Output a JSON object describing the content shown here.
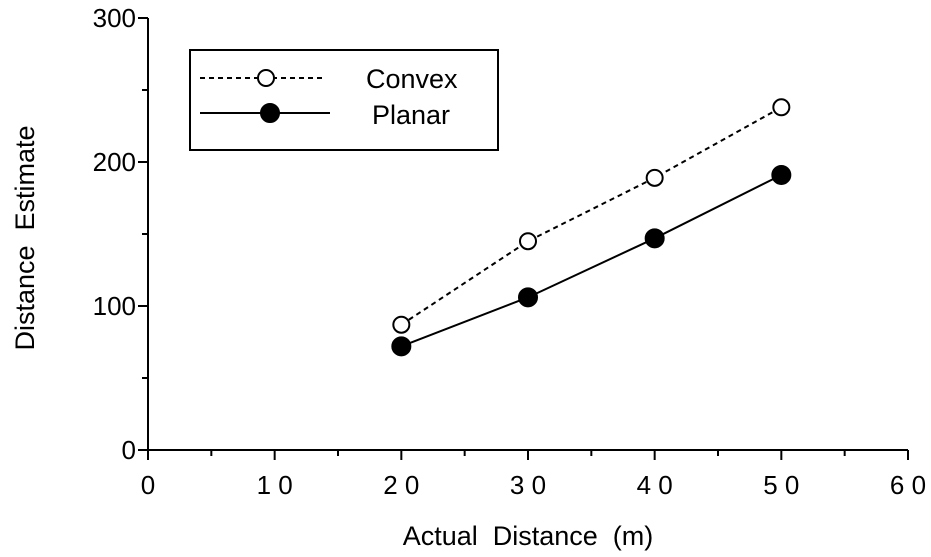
{
  "chart_data": {
    "type": "line",
    "xlabel": "Actual  Distance  (m)",
    "ylabel": "Distance  Estimate",
    "xlim": [
      0,
      60
    ],
    "ylim": [
      0,
      300
    ],
    "x_ticks": [
      0,
      10,
      20,
      30,
      40,
      50,
      60
    ],
    "x_tick_labels": [
      "0",
      "1 0",
      "2 0",
      "3 0",
      "4 0",
      "5 0",
      "6 0"
    ],
    "y_ticks": [
      0,
      100,
      200,
      300
    ],
    "y_tick_labels": [
      "0",
      "100",
      "200",
      "300"
    ],
    "grid": false,
    "legend_position": "top-left",
    "x": [
      20,
      30,
      40,
      50
    ],
    "series": [
      {
        "name": "Convex",
        "values": [
          87,
          145,
          189,
          238
        ],
        "line_style": "dashed",
        "marker": "open-circle",
        "color": "#000000"
      },
      {
        "name": "Planar",
        "values": [
          72,
          106,
          147,
          191
        ],
        "line_style": "solid",
        "marker": "filled-circle",
        "color": "#000000"
      }
    ]
  }
}
